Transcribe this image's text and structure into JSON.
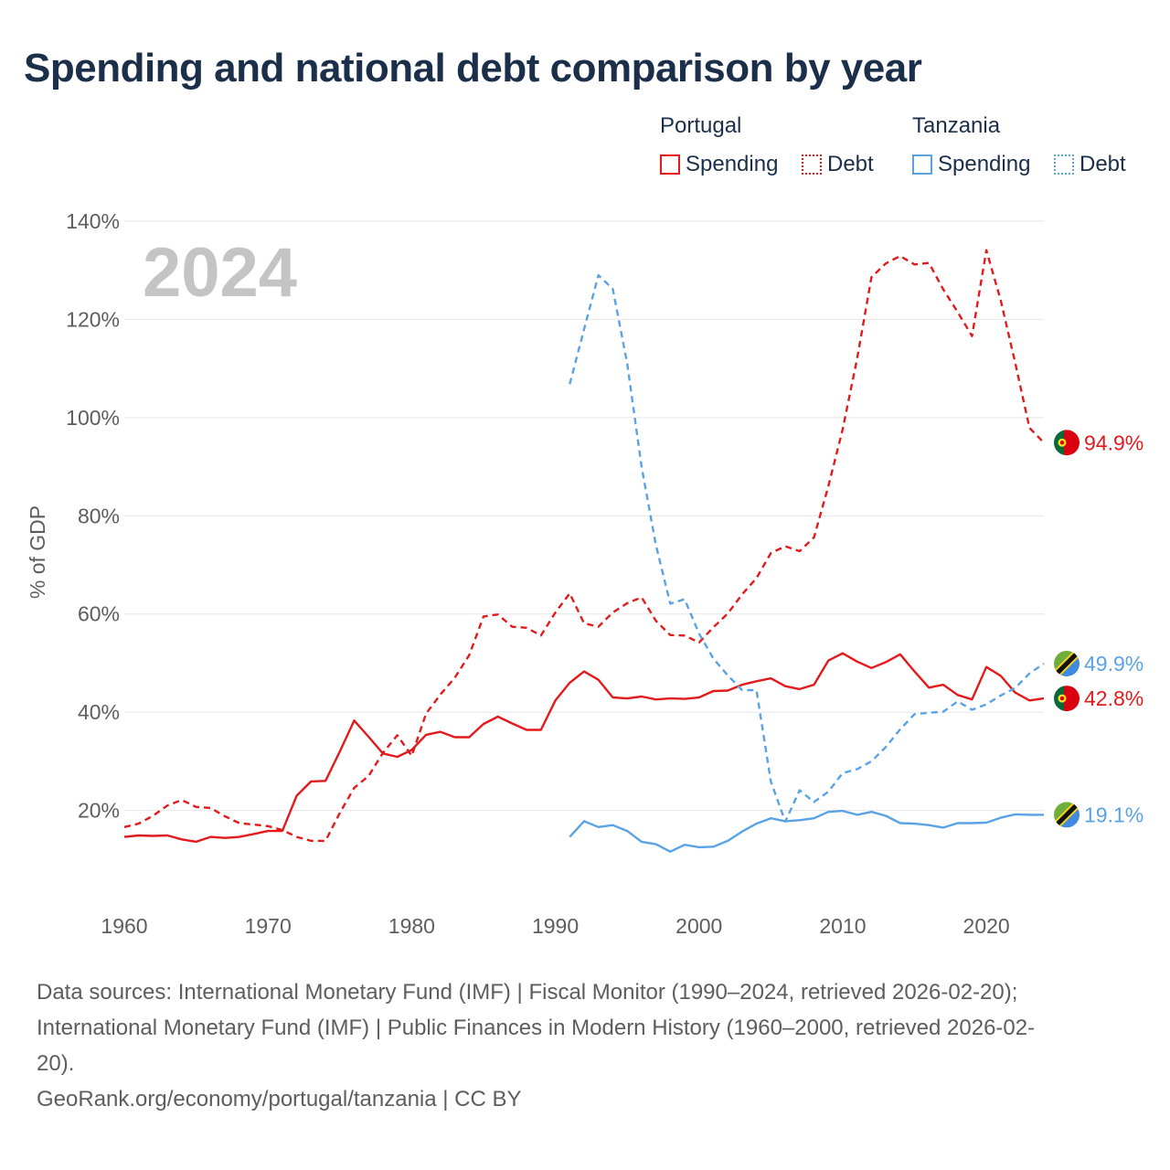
{
  "title": "Spending and national debt comparison by year",
  "legend": {
    "groups": [
      {
        "country": "Portugal",
        "color": "#e31a1c",
        "items": [
          "Spending",
          "Debt"
        ]
      },
      {
        "country": "Tanzania",
        "color": "#5aa2e6",
        "items": [
          "Spending",
          "Debt"
        ]
      }
    ]
  },
  "year_watermark": "2024",
  "sources": {
    "line1": "Data sources: International Monetary Fund (IMF) | Fiscal Monitor (1990–2024, retrieved 2026-02-20);",
    "line2": "International Monetary Fund (IMF) | Public Finances in Modern History (1960–2000, retrieved 2026-02-",
    "line3": "20).",
    "line4": "GeoRank.org/economy/portugal/tanzania | CC BY"
  },
  "chart_data": {
    "type": "line",
    "title": "Spending and national debt comparison by year",
    "xlabel": "",
    "ylabel": "% of GDP",
    "xlim": [
      1960,
      2024
    ],
    "ylim": [
      0,
      140
    ],
    "x_ticks": [
      1960,
      1970,
      1980,
      1990,
      2000,
      2010,
      2020
    ],
    "y_ticks": [
      20,
      40,
      60,
      80,
      100,
      120,
      140
    ],
    "y_tick_labels": [
      "20%",
      "40%",
      "60%",
      "80%",
      "100%",
      "120%",
      "140%"
    ],
    "grid": true,
    "series": [
      {
        "name": "Portugal Spending",
        "country": "Portugal",
        "measure": "Spending",
        "color": "#e31a1c",
        "dashed": false,
        "end_label": "42.8%",
        "x_start": 1960,
        "values": [
          14.6,
          14.9,
          14.8,
          14.9,
          14.1,
          13.6,
          14.6,
          14.4,
          14.6,
          15.2,
          15.8,
          15.8,
          23.0,
          25.9,
          26.0,
          32.0,
          38.3,
          35.0,
          31.6,
          30.9,
          32.3,
          35.4,
          36.0,
          34.9,
          34.9,
          37.6,
          39.1,
          37.7,
          36.4,
          36.4,
          42.4,
          46.0,
          48.3,
          46.6,
          43.0,
          42.8,
          43.2,
          42.6,
          42.8,
          42.7,
          43.0,
          44.3,
          44.4,
          45.6,
          46.3,
          46.9,
          45.3,
          44.7,
          45.6,
          50.5,
          52.0,
          50.3,
          49.0,
          50.2,
          51.8,
          48.3,
          45.0,
          45.6,
          43.5,
          42.6,
          49.2,
          47.4,
          44.0,
          42.4,
          42.8
        ]
      },
      {
        "name": "Portugal Debt",
        "country": "Portugal",
        "measure": "Debt",
        "color": "#e31a1c",
        "dashed": true,
        "end_label": "94.9%",
        "x_start": 1960,
        "values": [
          16.6,
          17.3,
          18.9,
          21.0,
          22.1,
          20.7,
          20.5,
          18.8,
          17.4,
          17.1,
          16.8,
          16.0,
          14.6,
          13.8,
          13.8,
          19.5,
          24.6,
          27.0,
          31.7,
          35.3,
          31.1,
          39.7,
          43.6,
          47.0,
          51.6,
          59.5,
          59.9,
          57.4,
          57.2,
          55.6,
          60.3,
          64.2,
          58.1,
          57.4,
          60.3,
          62.2,
          63.4,
          58.6,
          55.7,
          55.6,
          54.2,
          57.3,
          60.1,
          64.0,
          67.3,
          72.4,
          73.8,
          72.8,
          75.6,
          86.0,
          97.6,
          112.0,
          128.6,
          131.4,
          132.9,
          131.2,
          131.5,
          126.1,
          121.5,
          116.6,
          134.1,
          123.9,
          111.2,
          97.9,
          94.9
        ]
      },
      {
        "name": "Tanzania Spending",
        "country": "Tanzania",
        "measure": "Spending",
        "color": "#5aa2e6",
        "dashed": false,
        "end_label": "19.1%",
        "x_start": 1991,
        "values": [
          14.6,
          17.8,
          16.6,
          17.0,
          15.8,
          13.6,
          13.1,
          11.6,
          13.0,
          12.5,
          12.6,
          13.8,
          15.7,
          17.3,
          18.4,
          17.8,
          18.0,
          18.4,
          19.7,
          19.9,
          19.1,
          19.7,
          18.9,
          17.4,
          17.3,
          17.0,
          16.5,
          17.4,
          17.4,
          17.5,
          18.5,
          19.2,
          19.1,
          19.1
        ]
      },
      {
        "name": "Tanzania Debt",
        "country": "Tanzania",
        "measure": "Debt",
        "color": "#5aa2e6",
        "dashed": true,
        "end_label": "49.9%",
        "x_start": 1991,
        "values": [
          106.8,
          118.0,
          129.0,
          126.2,
          111.0,
          90.0,
          74.0,
          62.1,
          63.0,
          56.0,
          50.9,
          47.5,
          44.5,
          44.5,
          25.9,
          17.7,
          24.1,
          21.7,
          23.8,
          27.6,
          28.4,
          30.0,
          32.9,
          36.5,
          39.6,
          39.9,
          40.1,
          42.2,
          40.5,
          41.6,
          43.4,
          44.9,
          47.9,
          49.9
        ]
      }
    ]
  }
}
